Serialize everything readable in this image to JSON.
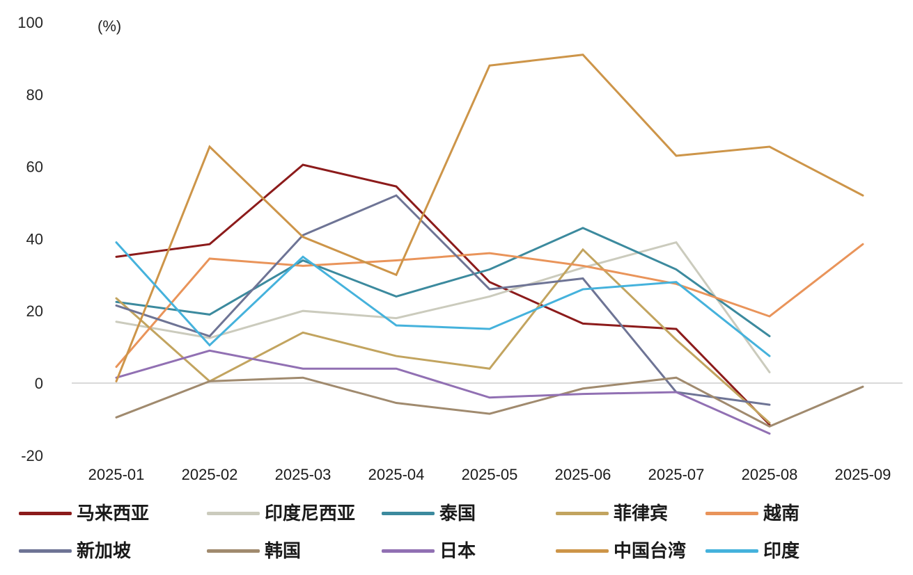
{
  "chart_data": {
    "type": "line",
    "title": "",
    "unit_label": "(%)",
    "xlabel": "",
    "ylabel": "(%)",
    "categories": [
      "2025-01",
      "2025-02",
      "2025-03",
      "2025-04",
      "2025-05",
      "2025-06",
      "2025-07",
      "2025-08",
      "2025-09"
    ],
    "y_ticks": [
      100,
      80,
      60,
      40,
      20,
      0,
      -20
    ],
    "ylim": [
      -20,
      100
    ],
    "grid": "zero-line-only",
    "zero_line_color": "#D9D9D9",
    "axis_text_color": "#262626",
    "legend_position": "bottom",
    "series": [
      {
        "name": "马来西亚",
        "color": "#8C1B1B",
        "values": [
          35,
          38.5,
          60.5,
          54.5,
          28,
          16.5,
          15,
          -11.5,
          null
        ]
      },
      {
        "name": "印度尼西亚",
        "color": "#CBCBBD",
        "values": [
          17,
          12.5,
          20,
          18,
          24,
          32,
          39,
          3,
          null
        ]
      },
      {
        "name": "泰国",
        "color": "#3C8A9E",
        "values": [
          22.5,
          19,
          34,
          24,
          31.5,
          43,
          31.5,
          13,
          null
        ]
      },
      {
        "name": "菲律宾",
        "color": "#C2A45F",
        "values": [
          23.5,
          0.5,
          14,
          7.5,
          4,
          37,
          12,
          -11,
          null
        ]
      },
      {
        "name": "越南",
        "color": "#E9945A",
        "values": [
          4.5,
          34.5,
          32.5,
          34,
          36,
          32.5,
          27.5,
          18.5,
          38.5
        ]
      },
      {
        "name": "新加坡",
        "color": "#6E7495",
        "values": [
          21.5,
          13,
          41,
          52,
          26,
          29,
          -2.5,
          -6,
          null
        ]
      },
      {
        "name": "韩国",
        "color": "#A08A6E",
        "values": [
          -9.5,
          0.5,
          1.5,
          -5.5,
          -8.5,
          -1.5,
          1.5,
          -12,
          -1
        ]
      },
      {
        "name": "日本",
        "color": "#9170B3",
        "values": [
          1.5,
          9,
          4,
          4,
          -4,
          -3,
          -2.5,
          -14,
          null
        ]
      },
      {
        "name": "中国台湾",
        "color": "#CD9549",
        "values": [
          0.5,
          65.5,
          40.5,
          30,
          88,
          91,
          63,
          65.5,
          52
        ]
      },
      {
        "name": "印度",
        "color": "#45B2DC",
        "values": [
          39,
          10.5,
          35,
          16,
          15,
          26,
          28,
          7.5,
          null
        ]
      }
    ],
    "legend_rows": [
      [
        "马来西亚",
        "印度尼西亚",
        "泰国",
        "菲律宾",
        "越南"
      ],
      [
        "新加坡",
        "韩国",
        "日本",
        "中国台湾",
        "印度"
      ]
    ]
  }
}
